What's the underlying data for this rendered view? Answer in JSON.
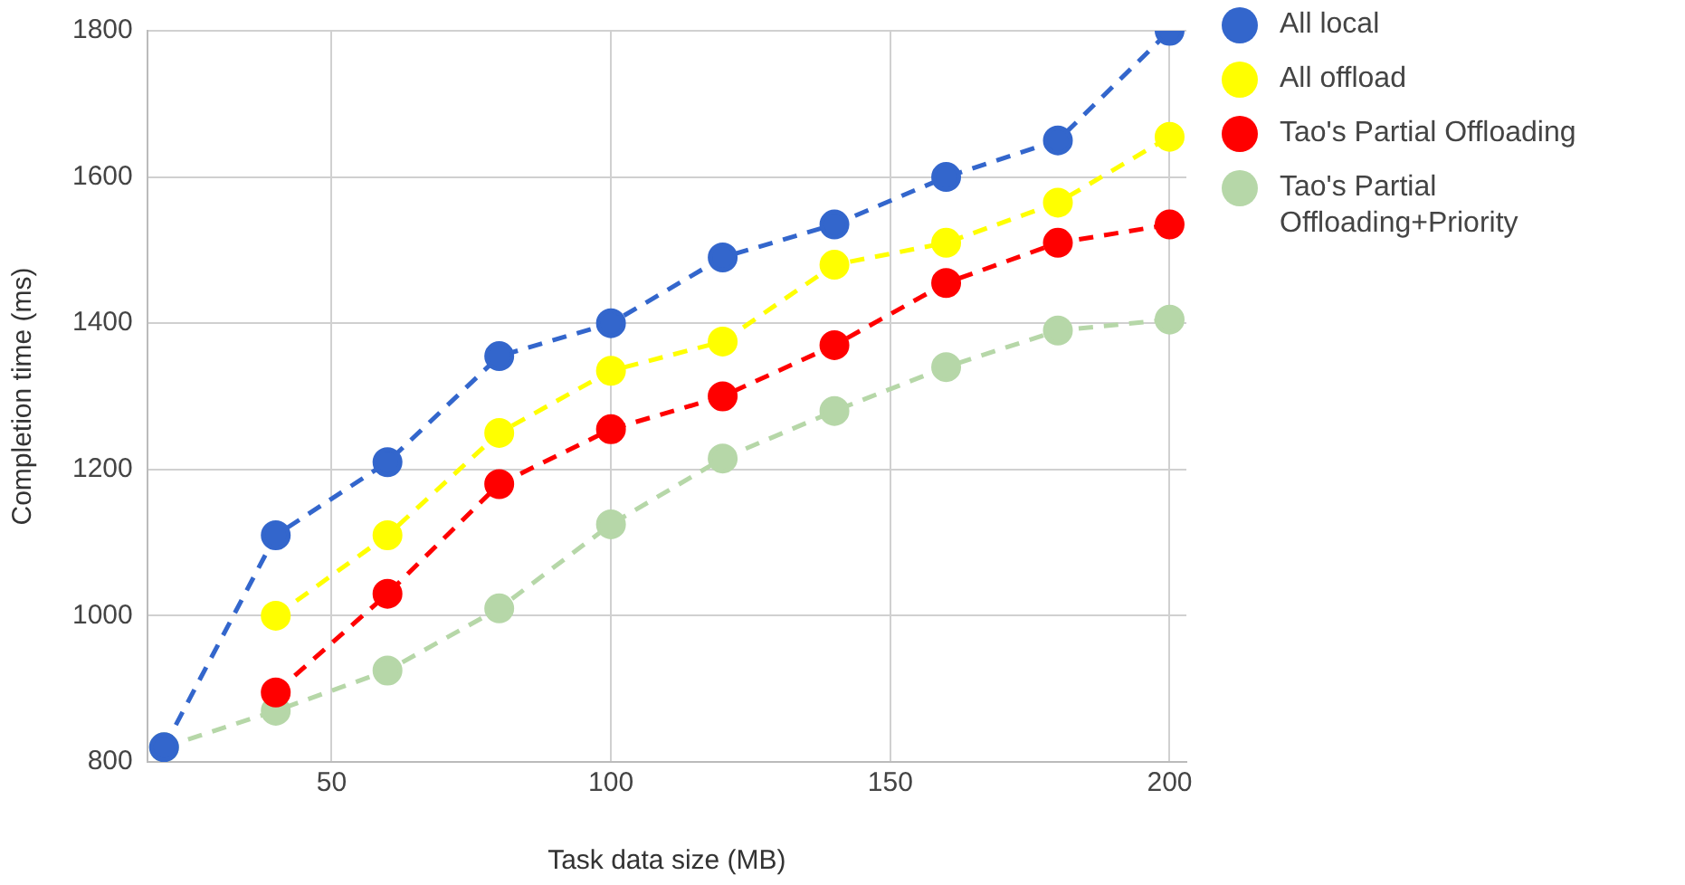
{
  "chart_data": {
    "type": "line",
    "xlabel": "Task data size (MB)",
    "ylabel": "Completion time (ms)",
    "x": [
      20,
      40,
      60,
      80,
      100,
      120,
      140,
      160,
      180,
      200
    ],
    "series": [
      {
        "name": "All local",
        "color": "#3366cc",
        "values": [
          820,
          1110,
          1210,
          1355,
          1400,
          1490,
          1535,
          1600,
          1650,
          1800
        ]
      },
      {
        "name": "All offload",
        "color": "#ffff00",
        "values": [
          null,
          1000,
          1110,
          1250,
          1335,
          1375,
          1480,
          1510,
          1565,
          1655
        ]
      },
      {
        "name": "Tao's Partial Offloading",
        "color": "#ff0000",
        "values": [
          null,
          895,
          1030,
          1180,
          1255,
          1300,
          1370,
          1455,
          1510,
          1535
        ]
      },
      {
        "name": "Tao's Partial Offloading+Priority",
        "color": "#b6d7a8",
        "values": [
          820,
          870,
          925,
          1010,
          1125,
          1215,
          1280,
          1340,
          1390,
          1405
        ]
      }
    ],
    "xlim": [
      17,
      203
    ],
    "xticks": [
      50,
      100,
      150,
      200
    ],
    "ylim": [
      800,
      1800
    ],
    "yticks": [
      800,
      1000,
      1200,
      1400,
      1600,
      1800
    ],
    "grid": true,
    "legend": "right",
    "marker": "circle",
    "line_style": "dashed"
  }
}
